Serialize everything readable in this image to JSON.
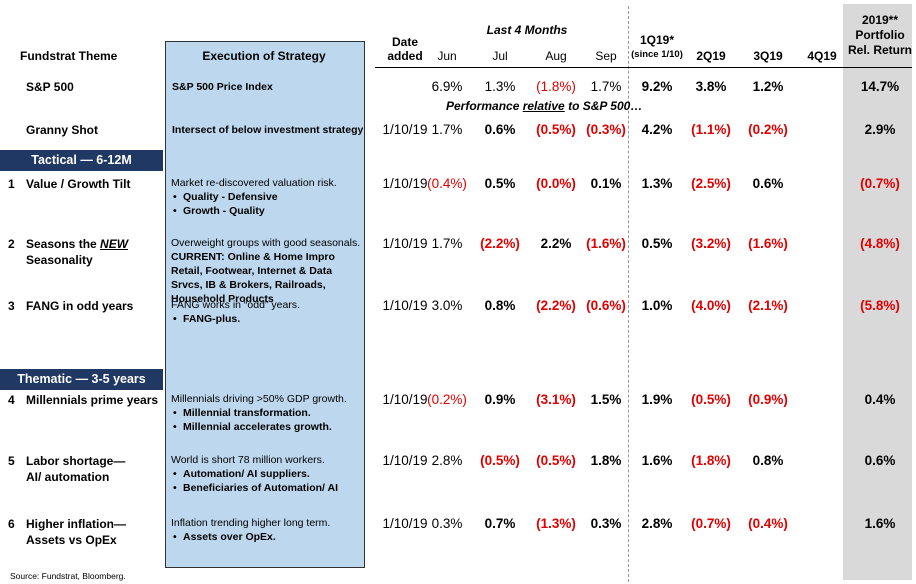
{
  "header": {
    "theme": "Fundstrat Theme",
    "execution": "Execution of Strategy",
    "date_added": "Date added",
    "last4": "Last 4 Months",
    "months": [
      "Jun",
      "Jul",
      "Aug",
      "Sep"
    ],
    "q1": [
      "1Q19*",
      "(since 1/10)"
    ],
    "quarters": [
      "2Q19",
      "3Q19",
      "4Q19"
    ],
    "portfolio": [
      "2019**",
      "Portfolio",
      "Rel. Return"
    ]
  },
  "benchmark": {
    "theme": "S&P 500",
    "execution": "S&P 500 Price Index",
    "months": [
      "6.9%",
      "1.3%",
      "(1.8%)",
      "1.7%"
    ],
    "quarters": [
      "9.2%",
      "3.8%",
      "1.2%"
    ],
    "portfolio": "14.7%"
  },
  "relative_note": {
    "before": "Performance ",
    "em": "relative",
    "after": " to S&P 500…"
  },
  "granny": {
    "theme": "Granny Shot",
    "execution": "Intersect of below investment strategy",
    "date": "1/10/19",
    "months": [
      "1.7%",
      "0.6%",
      "(0.5%)",
      "(0.3%)"
    ],
    "quarters": [
      "4.2%",
      "(1.1%)",
      "(0.2%)"
    ],
    "portfolio": "2.9%"
  },
  "sections": [
    "Tactical — 6-12M",
    "Thematic  — 3-5 years"
  ],
  "rows": [
    {
      "number": "1",
      "theme": [
        "Value / Growth Tilt"
      ],
      "execution": {
        "text": "Market re-discovered valuation risk.",
        "bullets": [
          "Quality - Defensive",
          "Growth - Quality"
        ]
      },
      "date": "1/10/19",
      "months": [
        "(0.4%)",
        "0.5%",
        "(0.0%)",
        "0.1%"
      ],
      "quarters": [
        "1.3%",
        "(2.5%)",
        "0.6%"
      ],
      "portfolio": "(0.7%)"
    },
    {
      "number": "2",
      "theme": [
        {
          "text": "Seasons the ",
          "em": "NEW"
        },
        "Seasonality"
      ],
      "execution": {
        "text": "Overweight groups with good seasonals.",
        "detail": "CURRENT: Online & Home Impro Retail, Footwear, Internet & Data Srvcs, IB & Brokers, Railroads, Household Products"
      },
      "date": "1/10/19",
      "months": [
        "1.7%",
        "(2.2%)",
        "2.2%",
        "(1.6%)"
      ],
      "quarters": [
        "0.5%",
        "(3.2%)",
        "(1.6%)"
      ],
      "portfolio": "(4.8%)"
    },
    {
      "number": "3",
      "theme": [
        "FANG in odd years"
      ],
      "execution": {
        "text": "FANG works in “odd” years.",
        "bullets": [
          "FANG-plus."
        ]
      },
      "date": "1/10/19",
      "months": [
        "3.0%",
        "0.8%",
        "(2.2%)",
        "(0.6%)"
      ],
      "quarters": [
        "1.0%",
        "(4.0%)",
        "(2.1%)"
      ],
      "portfolio": "(5.8%)"
    },
    {
      "number": "4",
      "theme": [
        "Millennials prime years"
      ],
      "execution": {
        "text": "Millennials driving >50% GDP growth.",
        "bullets": [
          "Millennial transformation.",
          "Millennial accelerates growth."
        ]
      },
      "date": "1/10/19",
      "months": [
        "(0.2%)",
        "0.9%",
        "(3.1%)",
        "1.5%"
      ],
      "quarters": [
        "1.9%",
        "(0.5%)",
        "(0.9%)"
      ],
      "portfolio": "0.4%"
    },
    {
      "number": "5",
      "theme": [
        "Labor shortage—",
        "AI/ automation"
      ],
      "execution": {
        "text": "World is short 78 million workers.",
        "bullets": [
          "Automation/ AI suppliers.",
          "Beneficiaries of Automation/ AI"
        ]
      },
      "date": "1/10/19",
      "months": [
        "2.8%",
        "(0.5%)",
        "(0.5%)",
        "1.8%"
      ],
      "quarters": [
        "1.6%",
        "(1.8%)",
        "0.8%"
      ],
      "portfolio": "0.6%"
    },
    {
      "number": "6",
      "theme": [
        "Higher inflation—",
        "Assets vs OpEx"
      ],
      "execution": {
        "text": "Inflation trending higher long term.",
        "bullets": [
          "Assets over OpEx."
        ]
      },
      "date": "1/10/19",
      "months": [
        "0.3%",
        "0.7%",
        "(1.3%)",
        "0.3%"
      ],
      "quarters": [
        "2.8%",
        "(0.7%)",
        "(0.4%)"
      ],
      "portfolio": "1.6%"
    }
  ],
  "source": "Source: Fundstrat, Bloomberg."
}
